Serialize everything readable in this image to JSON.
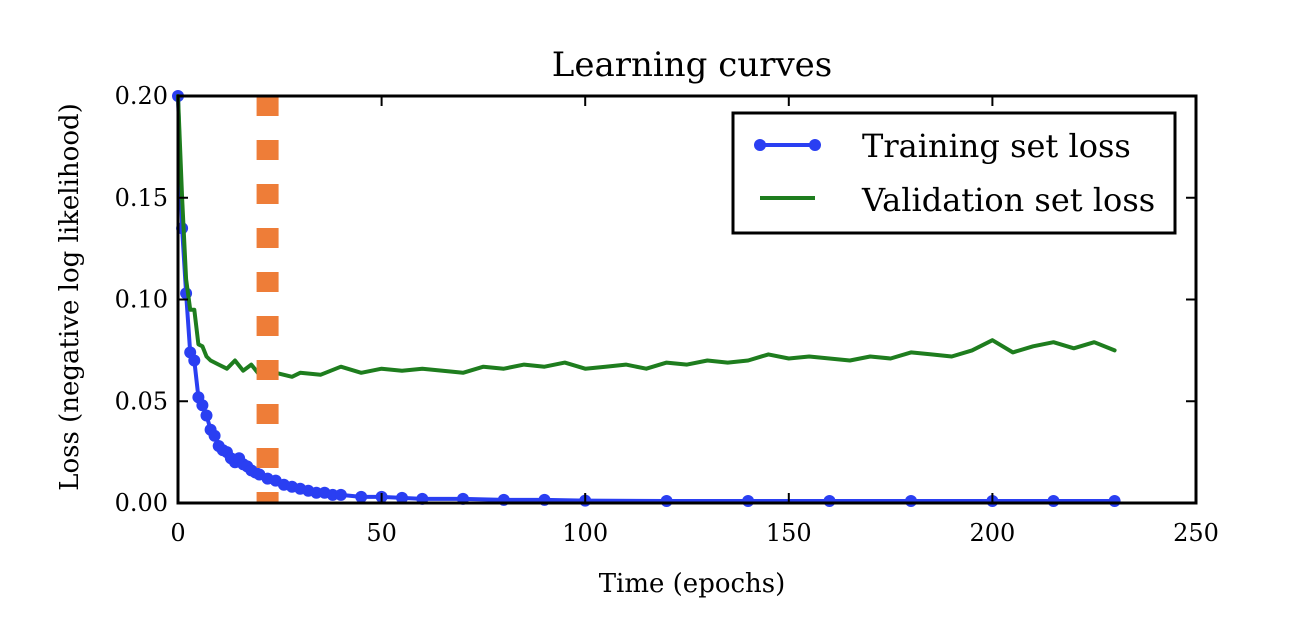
{
  "chart_data": {
    "type": "line",
    "title": "Learning curves",
    "xlabel": "Time (epochs)",
    "ylabel": "Loss (negative log likelihood)",
    "xlim": [
      0,
      250
    ],
    "ylim": [
      0.0,
      0.2
    ],
    "x_ticks": [
      "0",
      "50",
      "100",
      "150",
      "200",
      "250"
    ],
    "y_ticks": [
      "0.00",
      "0.05",
      "0.10",
      "0.15",
      "0.20"
    ],
    "x_tick_values": [
      0,
      50,
      100,
      150,
      200,
      250
    ],
    "y_tick_values": [
      0.0,
      0.05,
      0.1,
      0.15,
      0.2
    ],
    "grid": false,
    "legend_position": "top-right",
    "vertical_marker": {
      "x": 22,
      "color": "#ee7d38",
      "style": "dashed"
    },
    "series": [
      {
        "name": "Training set loss",
        "color": "#2a3ff2",
        "marker": "circle",
        "x": [
          0,
          1,
          2,
          3,
          4,
          5,
          6,
          7,
          8,
          9,
          10,
          11,
          12,
          13,
          14,
          15,
          16,
          17,
          18,
          19,
          20,
          22,
          24,
          26,
          28,
          30,
          32,
          34,
          36,
          38,
          40,
          45,
          50,
          55,
          60,
          70,
          80,
          90,
          100,
          120,
          140,
          160,
          180,
          200,
          215,
          230
        ],
        "values": [
          0.2,
          0.135,
          0.103,
          0.074,
          0.07,
          0.052,
          0.048,
          0.043,
          0.036,
          0.033,
          0.028,
          0.026,
          0.025,
          0.022,
          0.02,
          0.022,
          0.019,
          0.018,
          0.016,
          0.015,
          0.014,
          0.012,
          0.011,
          0.009,
          0.008,
          0.007,
          0.006,
          0.005,
          0.005,
          0.004,
          0.004,
          0.003,
          0.003,
          0.0025,
          0.002,
          0.002,
          0.0015,
          0.0015,
          0.0012,
          0.001,
          0.001,
          0.001,
          0.001,
          0.001,
          0.001,
          0.001
        ]
      },
      {
        "name": "Validation set loss",
        "color": "#1e7d1e",
        "marker": "none",
        "x": [
          0,
          1,
          2,
          3,
          4,
          5,
          6,
          7,
          8,
          10,
          12,
          14,
          16,
          18,
          20,
          22,
          24,
          26,
          28,
          30,
          35,
          40,
          45,
          50,
          55,
          60,
          65,
          70,
          75,
          80,
          85,
          90,
          95,
          100,
          105,
          110,
          115,
          120,
          125,
          130,
          135,
          140,
          145,
          150,
          155,
          160,
          165,
          170,
          175,
          180,
          185,
          190,
          195,
          200,
          205,
          210,
          215,
          220,
          225,
          230
        ],
        "values": [
          0.2,
          0.15,
          0.11,
          0.095,
          0.095,
          0.078,
          0.077,
          0.072,
          0.07,
          0.068,
          0.066,
          0.07,
          0.065,
          0.068,
          0.063,
          0.066,
          0.064,
          0.063,
          0.062,
          0.064,
          0.063,
          0.067,
          0.064,
          0.066,
          0.065,
          0.066,
          0.065,
          0.064,
          0.067,
          0.066,
          0.068,
          0.067,
          0.069,
          0.066,
          0.067,
          0.068,
          0.066,
          0.069,
          0.068,
          0.07,
          0.069,
          0.07,
          0.073,
          0.071,
          0.072,
          0.071,
          0.07,
          0.072,
          0.071,
          0.074,
          0.073,
          0.072,
          0.075,
          0.08,
          0.074,
          0.077,
          0.079,
          0.076,
          0.079,
          0.075
        ]
      }
    ]
  }
}
